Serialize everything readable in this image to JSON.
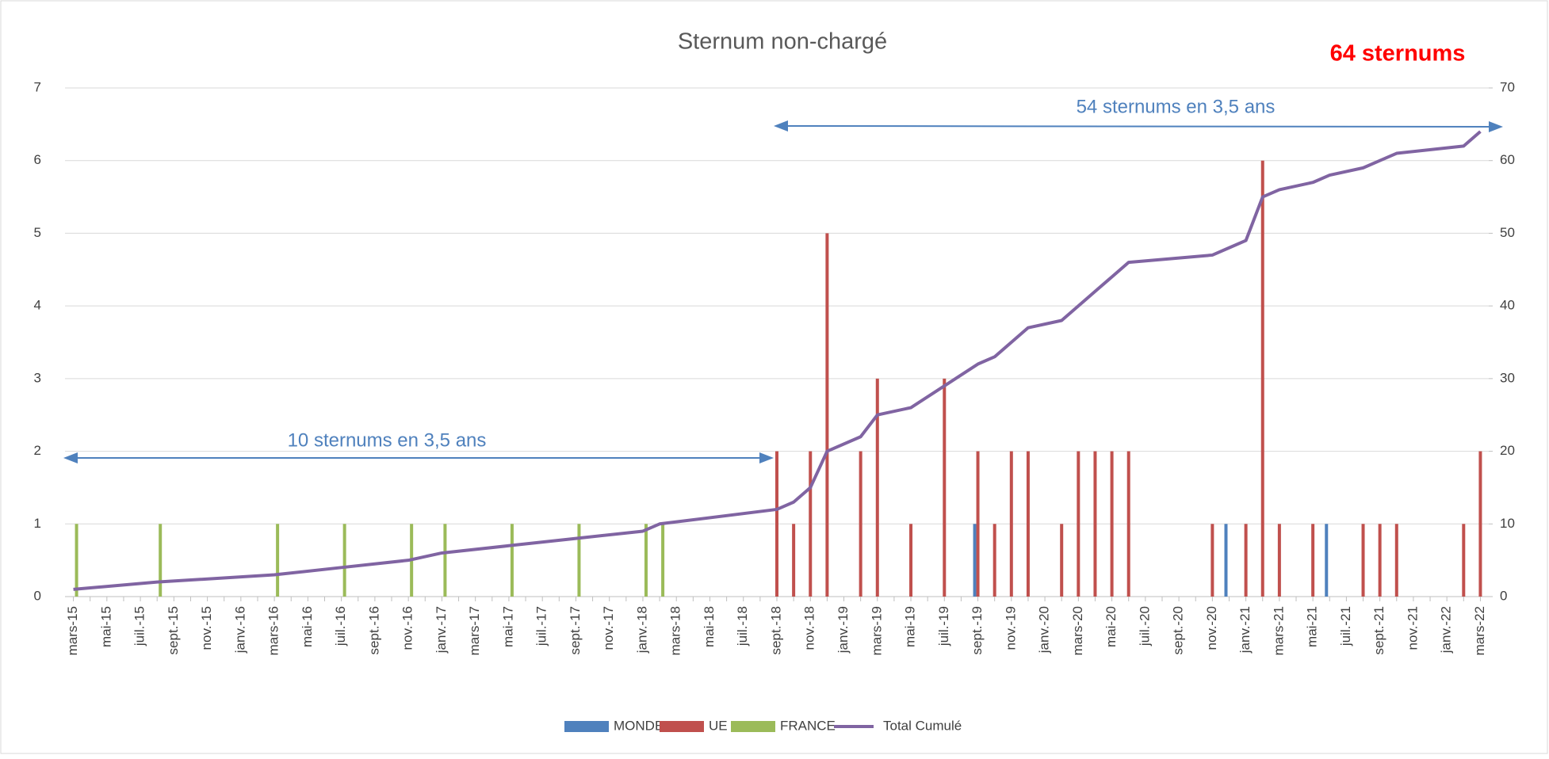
{
  "chart_data": {
    "type": "bar_line",
    "title": "Sternum non-chargé",
    "annotations": [
      "64 sternums",
      "54 sternums en 3,5 ans",
      "10 sternums en 3,5 ans"
    ],
    "categories": [
      "mars-15",
      null,
      "mai-15",
      null,
      "juil.-15",
      null,
      "sept.-15",
      null,
      "nov.-15",
      null,
      "janv.-16",
      null,
      "mars-16",
      null,
      "mai-16",
      null,
      "juil.-16",
      null,
      "sept.-16",
      null,
      "nov.-16",
      null,
      "janv.-17",
      null,
      "mars-17",
      null,
      "mai-17",
      null,
      "juil.-17",
      null,
      "sept.-17",
      null,
      "nov.-17",
      null,
      "janv.-18",
      null,
      "mars-18",
      null,
      "mai-18",
      null,
      "juil.-18",
      null,
      "sept.-18",
      null,
      "nov.-18",
      null,
      "janv.-19",
      null,
      "mars-19",
      null,
      "mai-19",
      null,
      "juil.-19",
      null,
      "sept.-19",
      null,
      "nov.-19",
      null,
      "janv.-20",
      null,
      "mars-20",
      null,
      "mai-20",
      null,
      "juil.-20",
      null,
      "sept.-20",
      null,
      "nov.-20",
      null,
      "janv.-21",
      null,
      "mars-21",
      null,
      "mai-21",
      null,
      "juil.-21",
      null,
      "sept.-21",
      null,
      "nov.-21",
      null,
      "janv.-22",
      null,
      "mars-22"
    ],
    "series": [
      {
        "name": "MONDE",
        "color": "#4f81bd",
        "values": [
          null,
          null,
          null,
          null,
          null,
          null,
          null,
          null,
          null,
          null,
          null,
          null,
          null,
          null,
          null,
          null,
          null,
          null,
          null,
          null,
          null,
          null,
          null,
          null,
          null,
          null,
          null,
          null,
          null,
          null,
          null,
          null,
          null,
          null,
          null,
          null,
          null,
          null,
          null,
          null,
          null,
          null,
          null,
          null,
          null,
          null,
          null,
          null,
          null,
          null,
          null,
          null,
          null,
          null,
          1,
          null,
          null,
          null,
          null,
          null,
          null,
          null,
          null,
          null,
          null,
          null,
          null,
          null,
          null,
          1,
          null,
          null,
          null,
          null,
          null,
          1,
          null,
          null,
          null,
          null,
          null,
          null,
          null,
          null,
          null
        ]
      },
      {
        "name": "UE",
        "color": "#c0504d",
        "values": [
          null,
          null,
          null,
          null,
          null,
          null,
          null,
          null,
          null,
          null,
          null,
          null,
          null,
          null,
          null,
          null,
          null,
          null,
          null,
          null,
          null,
          null,
          null,
          null,
          null,
          null,
          null,
          null,
          null,
          null,
          null,
          null,
          null,
          null,
          null,
          null,
          null,
          null,
          null,
          null,
          null,
          null,
          2,
          1,
          2,
          5,
          null,
          2,
          3,
          null,
          1,
          null,
          3,
          null,
          2,
          1,
          2,
          2,
          null,
          1,
          2,
          2,
          2,
          2,
          null,
          null,
          null,
          null,
          1,
          null,
          1,
          6,
          1,
          null,
          1,
          null,
          null,
          1,
          1,
          1,
          null,
          null,
          null,
          1,
          2
        ]
      },
      {
        "name": "FRANCE",
        "color": "#9bbb59",
        "values": [
          1,
          null,
          null,
          null,
          null,
          1,
          null,
          null,
          null,
          null,
          null,
          null,
          1,
          null,
          null,
          null,
          1,
          null,
          null,
          null,
          1,
          null,
          1,
          null,
          null,
          null,
          1,
          null,
          null,
          null,
          1,
          null,
          null,
          null,
          1,
          1,
          null,
          null,
          null,
          null,
          null,
          null,
          null,
          null,
          null,
          null,
          null,
          null,
          null,
          null,
          null,
          null,
          null,
          null,
          null,
          null,
          null,
          null,
          null,
          null,
          null,
          null,
          null,
          null,
          null,
          null,
          null,
          null,
          null,
          null,
          null,
          null,
          null,
          null,
          null,
          null,
          null,
          null,
          null,
          null,
          null,
          null,
          null,
          null,
          null
        ]
      },
      {
        "name": "Total Cumulé",
        "color": "#8064a2",
        "kind": "line",
        "axis": "y2",
        "connect_nulls": true,
        "values": [
          1,
          null,
          null,
          null,
          null,
          2,
          null,
          null,
          null,
          null,
          null,
          null,
          3,
          null,
          null,
          null,
          4,
          null,
          null,
          null,
          5,
          null,
          6,
          null,
          null,
          null,
          7,
          null,
          null,
          null,
          8,
          null,
          null,
          null,
          9,
          10,
          null,
          null,
          null,
          null,
          null,
          null,
          12,
          13,
          15,
          20,
          null,
          22,
          25,
          null,
          26,
          null,
          29,
          null,
          32,
          33,
          35,
          37,
          null,
          38,
          40,
          42,
          44,
          46,
          null,
          null,
          null,
          null,
          47,
          48,
          49,
          55,
          56,
          null,
          57,
          58,
          null,
          59,
          60,
          61,
          null,
          null,
          null,
          62,
          64
        ]
      }
    ],
    "ylim": [
      0,
      7
    ],
    "yticks": [
      0,
      1,
      2,
      3,
      4,
      5,
      6,
      7
    ],
    "y2lim": [
      0,
      70
    ],
    "y2ticks": [
      0,
      10,
      20,
      30,
      40,
      50,
      60,
      70
    ],
    "grid": true,
    "legend": "bottom"
  }
}
